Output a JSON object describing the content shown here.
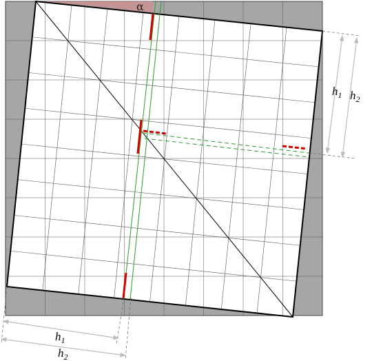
{
  "labels": {
    "alpha": "α",
    "right_h1": {
      "base": "h",
      "sub": "1"
    },
    "right_h2": {
      "base": "h",
      "sub": "2"
    },
    "bottom_h1": {
      "base": "h",
      "sub": "1"
    },
    "bottom_h2": {
      "base": "h",
      "sub": "2"
    }
  }
}
